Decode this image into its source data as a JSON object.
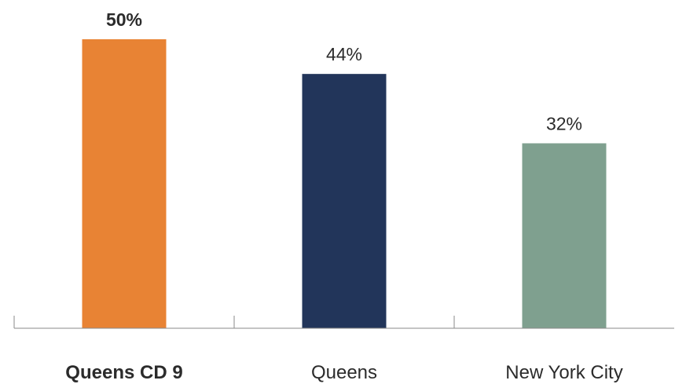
{
  "chart_data": {
    "type": "bar",
    "categories": [
      "Queens CD 9",
      "Queens",
      "New York City"
    ],
    "values": [
      50,
      44,
      32
    ],
    "value_labels": [
      "50%",
      "44%",
      "32%"
    ],
    "highlight_index": 0,
    "colors": [
      "#E88334",
      "#22355A",
      "#7FA08F"
    ],
    "ylim": [
      0,
      55
    ],
    "title": "",
    "xlabel": "",
    "ylabel": "",
    "grid": false,
    "legend": "none"
  }
}
